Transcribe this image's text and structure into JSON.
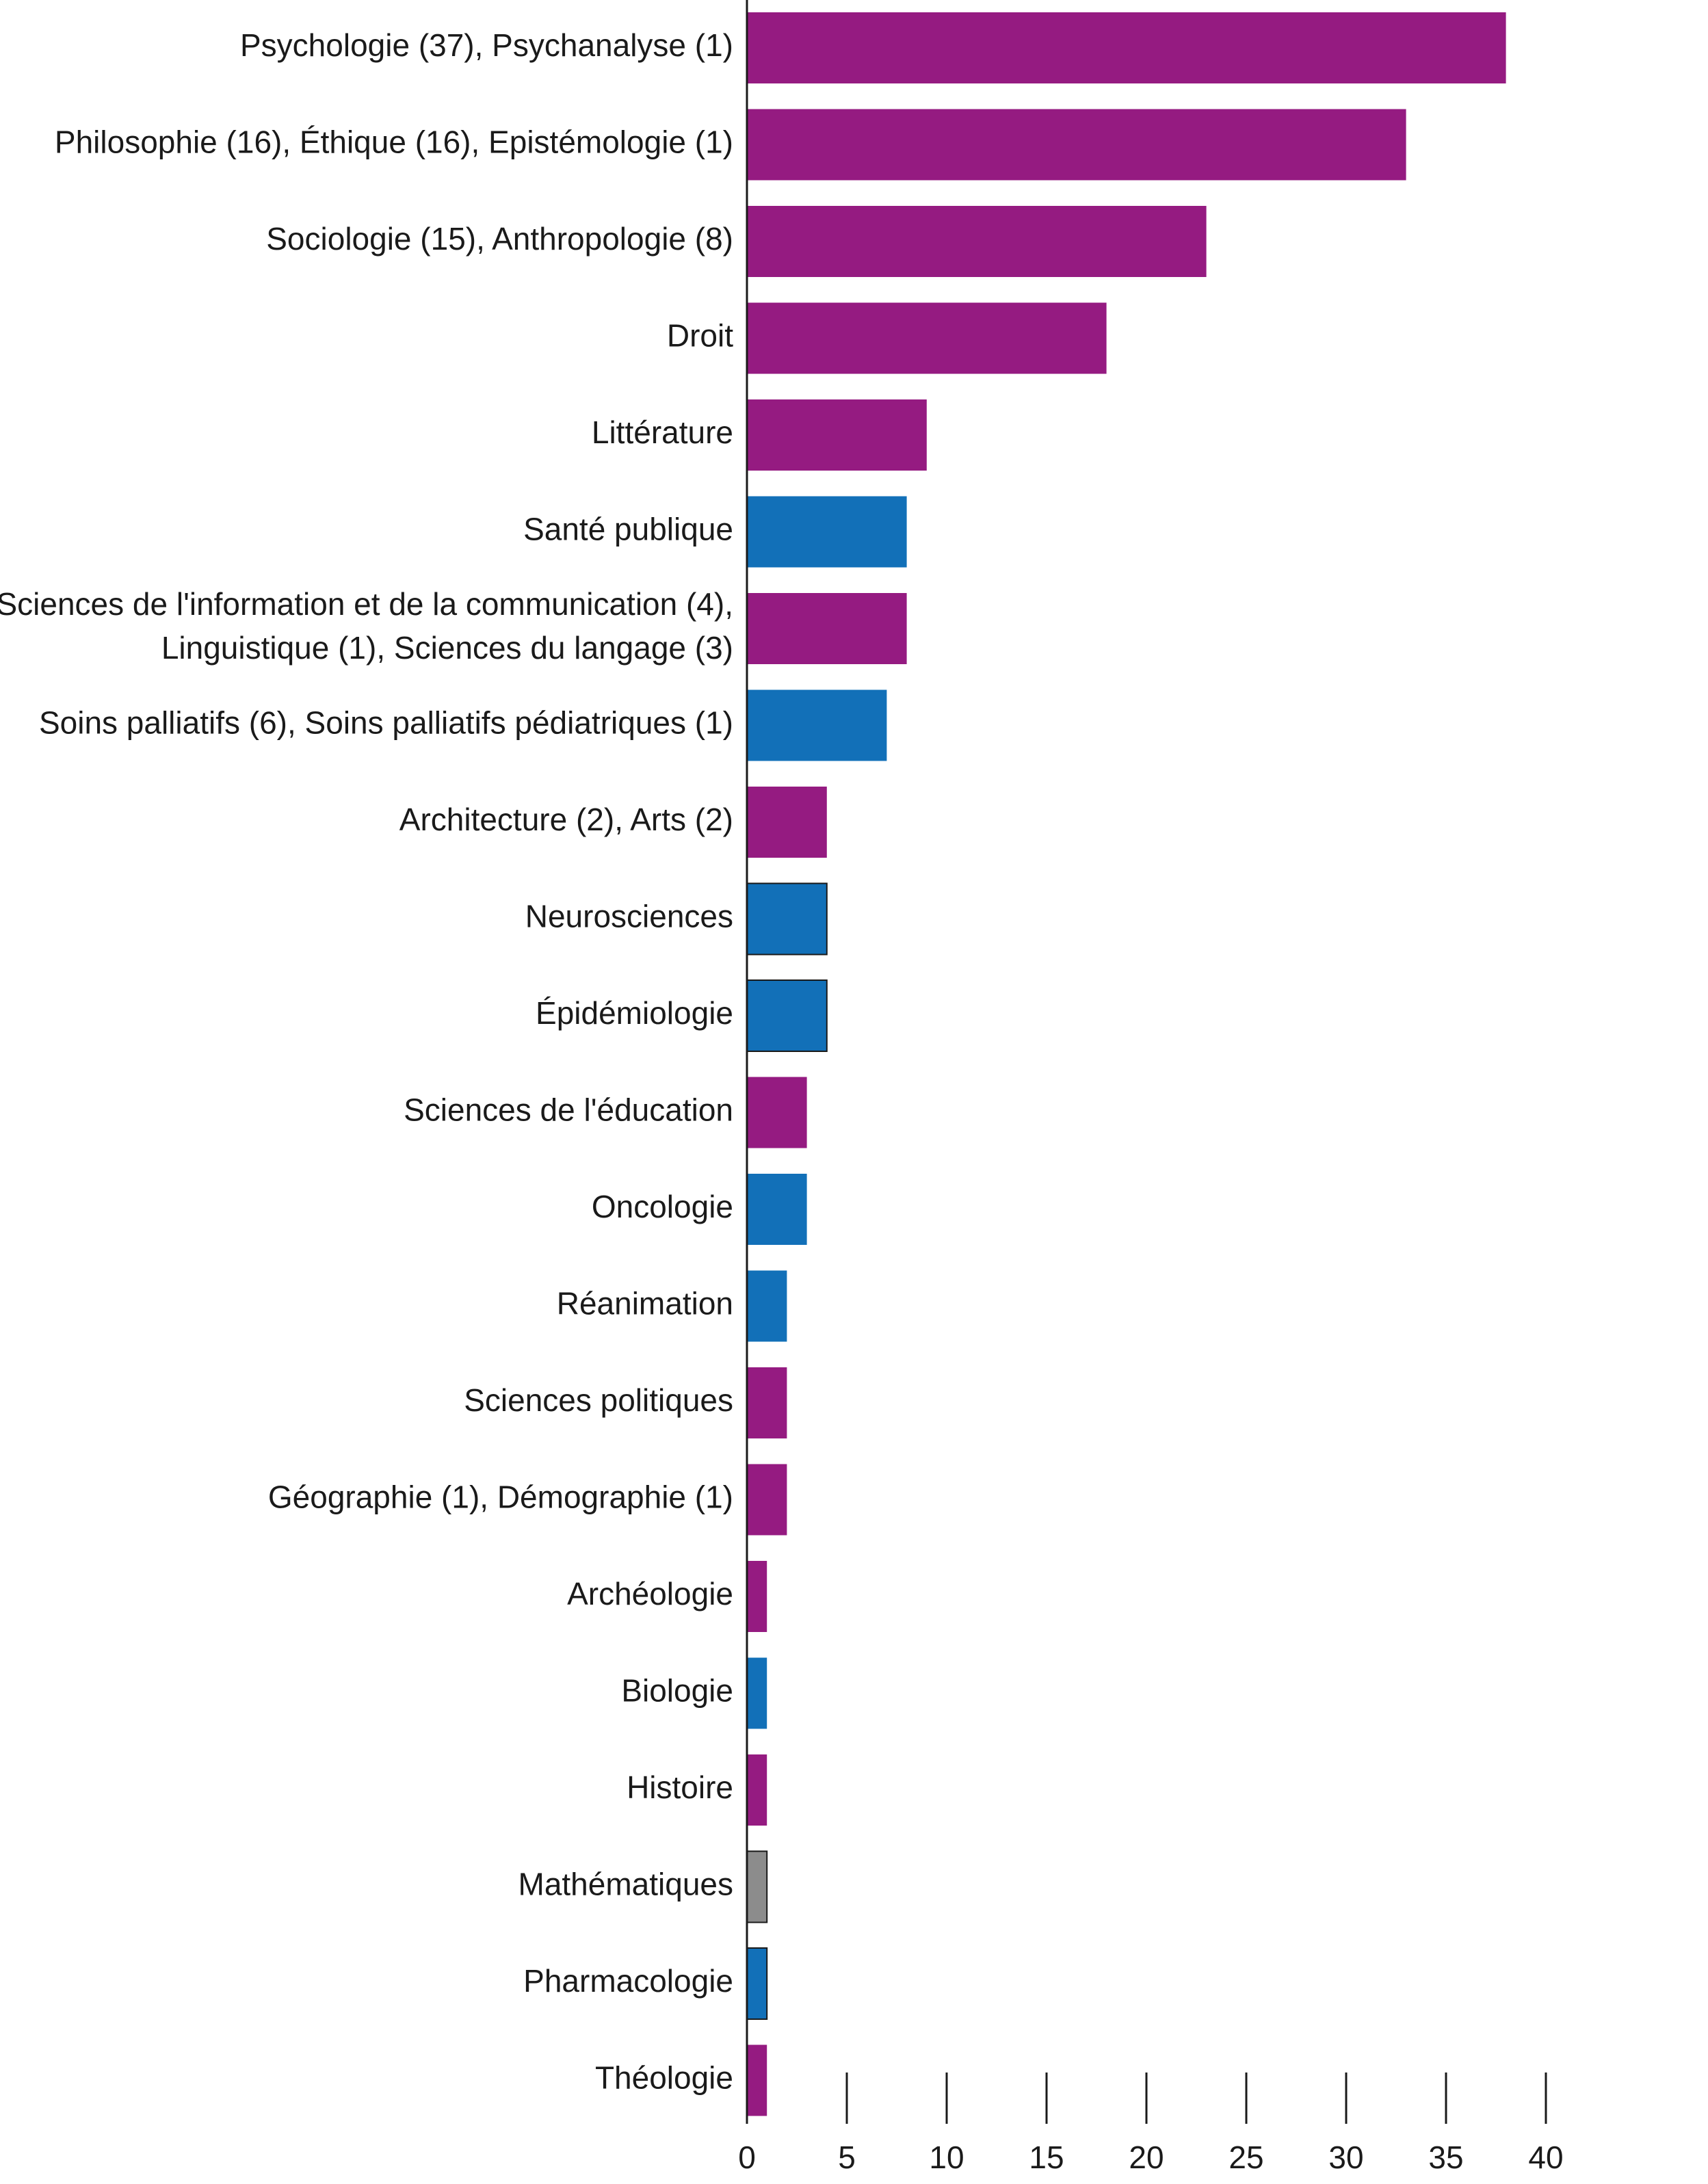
{
  "chart_data": {
    "type": "bar",
    "orientation": "horizontal",
    "title": "",
    "xlabel": "",
    "ylabel": "",
    "xlim": [
      0,
      40
    ],
    "x_ticks": [
      "0",
      "5",
      "10",
      "15",
      "20",
      "25",
      "30",
      "35",
      "40"
    ],
    "grid": false,
    "legend": "none",
    "colors": {
      "purple": "#951b81",
      "blue": "#1270b8",
      "gray": "#8c8c8c"
    },
    "categories": [
      [
        "Psychologie (37), Psychanalyse (1)"
      ],
      [
        "Philosophie (16), Éthique (16), Epistémologie (1)"
      ],
      [
        "Sociologie (15), Anthropologie (8)"
      ],
      [
        "Droit"
      ],
      [
        "Littérature"
      ],
      [
        "Santé publique"
      ],
      [
        "Sciences de l'information et de la communication (4),",
        "Linguistique (1), Sciences du langage (3)"
      ],
      [
        "Soins palliatifs (6), Soins palliatifs pédiatriques (1)"
      ],
      [
        "Architecture (2), Arts (2)"
      ],
      [
        "Neurosciences"
      ],
      [
        "Épidémiologie"
      ],
      [
        "Sciences de l'éducation"
      ],
      [
        "Oncologie"
      ],
      [
        "Réanimation"
      ],
      [
        "Sciences politiques"
      ],
      [
        "Géographie (1), Démographie (1)"
      ],
      [
        "Archéologie"
      ],
      [
        "Biologie"
      ],
      [
        "Histoire"
      ],
      [
        "Mathématiques"
      ],
      [
        "Pharmacologie"
      ],
      [
        "Théologie"
      ]
    ],
    "values": [
      38,
      33,
      23,
      18,
      9,
      8,
      8,
      7,
      4,
      4,
      4,
      3,
      3,
      2,
      2,
      2,
      1,
      1,
      1,
      1,
      1,
      1
    ],
    "bar_colors": [
      "purple",
      "purple",
      "purple",
      "purple",
      "purple",
      "blue",
      "purple",
      "blue",
      "purple",
      "blue",
      "blue",
      "purple",
      "blue",
      "blue",
      "purple",
      "purple",
      "purple",
      "blue",
      "purple",
      "gray",
      "blue",
      "purple"
    ]
  }
}
